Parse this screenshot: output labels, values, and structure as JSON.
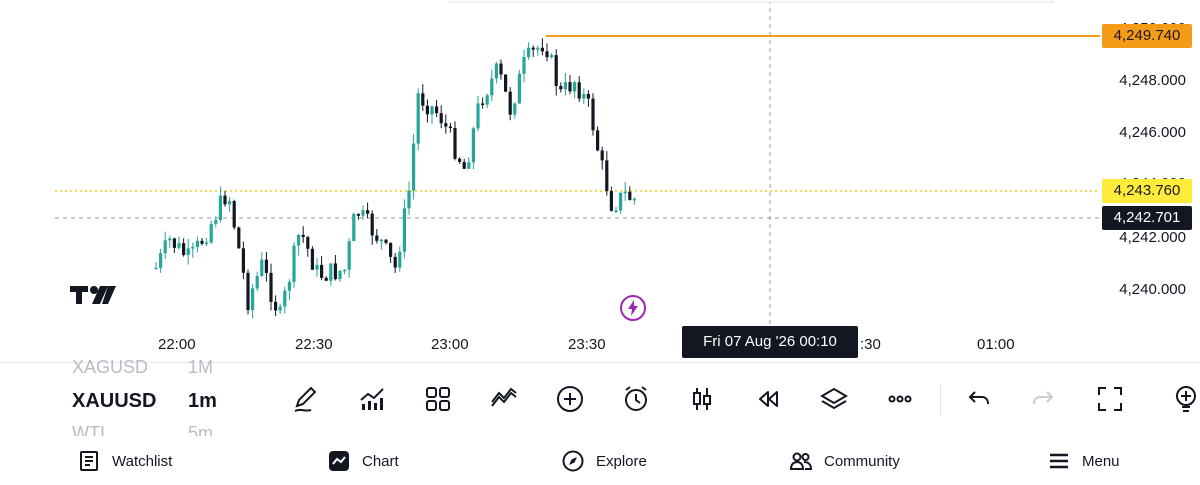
{
  "chart": {
    "prices": {
      "high_tag": "4,249.740",
      "last_tag": "4,243.760",
      "cross_tag": "4,242.701"
    },
    "y_axis": [
      "4,250.000",
      "4,248.000",
      "4,246.000",
      "4,244.000",
      "4,242.000",
      "4,240.000"
    ],
    "x_axis": [
      "22:00",
      "22:30",
      "23:00",
      "23:30",
      ":30",
      "01:00"
    ],
    "crosshair_time": "Fri 07 Aug '26   00:10",
    "colors": {
      "up": "#26a69a",
      "down": "#131722",
      "high_line": "#f59b18",
      "last_line": "#e8d10c"
    }
  },
  "toolbar": {
    "symbol_prev": "XAGUSD",
    "symbol": "XAUUSD",
    "symbol_next": "WTI",
    "tf_prev": "1M",
    "timeframe": "1m",
    "tf_next": "5m",
    "tools": [
      "pencil-icon",
      "indicators-icon",
      "layouts-icon",
      "compare-icon",
      "add-icon",
      "alert-icon",
      "candles-icon",
      "replay-icon",
      "layers-icon",
      "more-icon",
      "undo-icon",
      "redo-icon",
      "fullscreen-icon",
      "ideas-icon"
    ]
  },
  "nav": {
    "watchlist": "Watchlist",
    "chart": "Chart",
    "explore": "Explore",
    "community": "Community",
    "menu": "Menu"
  }
}
